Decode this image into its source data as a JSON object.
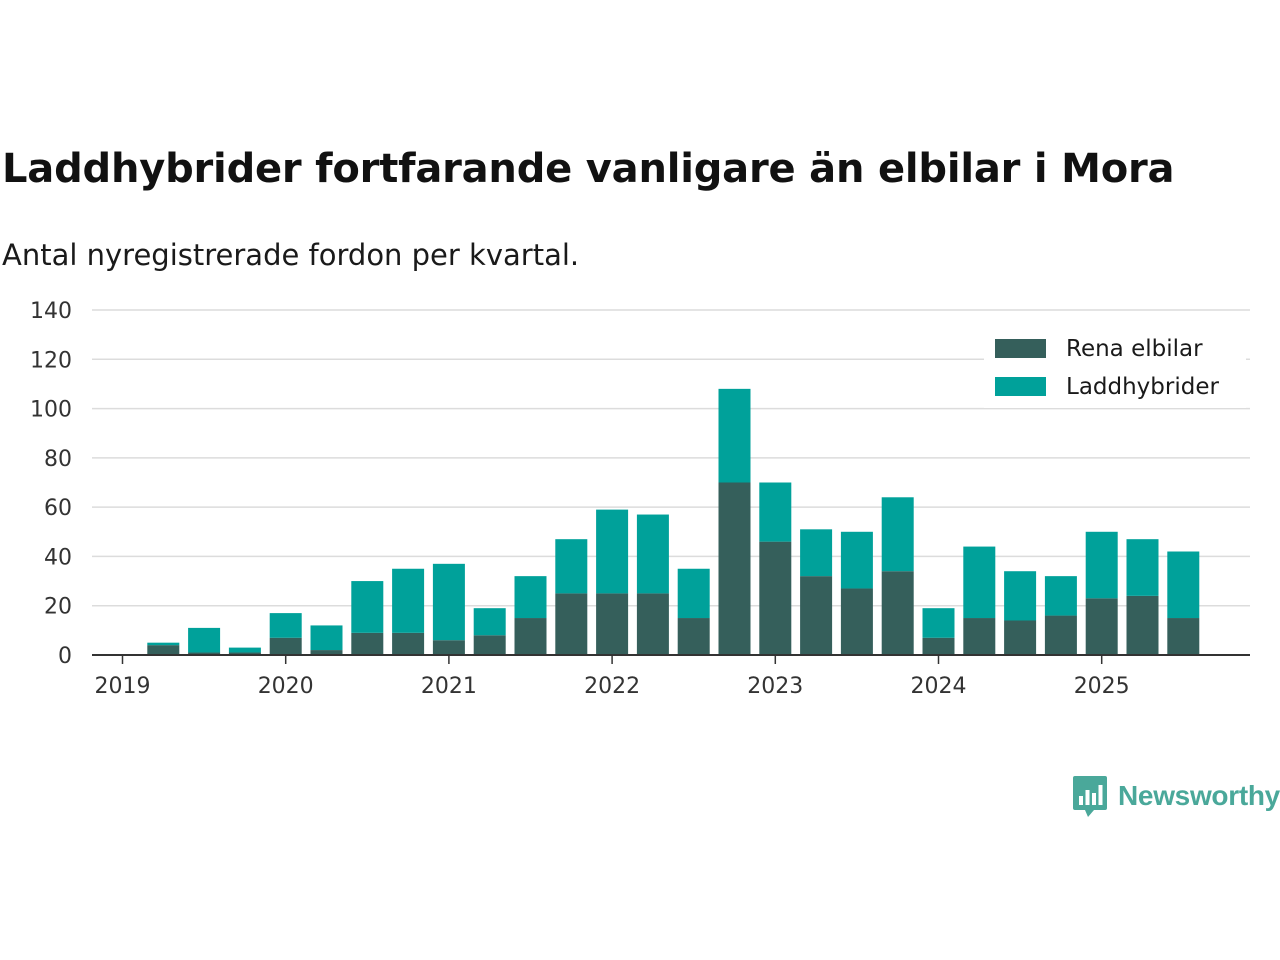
{
  "header": {
    "title": "Laddhybrider fortfarande vanligare än elbilar i Mora",
    "subtitle": "Antal nyregistrerade fordon per kvartal."
  },
  "brand": {
    "name": "Newsworthy",
    "icon": "bar-chart-speech-bubble-icon",
    "color": "#4aa89a"
  },
  "chart_data": {
    "type": "bar",
    "stacked": true,
    "x_unit": "quarter",
    "categories": [
      "2019 Q1",
      "2019 Q2",
      "2019 Q3",
      "2019 Q4",
      "2020 Q1",
      "2020 Q2",
      "2020 Q3",
      "2020 Q4",
      "2021 Q1",
      "2021 Q2",
      "2021 Q3",
      "2021 Q4",
      "2022 Q1",
      "2022 Q2",
      "2022 Q3",
      "2022 Q4",
      "2023 Q1",
      "2023 Q2",
      "2023 Q3",
      "2023 Q4",
      "2024 Q1",
      "2024 Q2",
      "2024 Q3",
      "2024 Q4",
      "2025 Q1",
      "2025 Q2",
      "2025 Q3"
    ],
    "series": [
      {
        "name": "Rena elbilar",
        "color": "#355f5b",
        "values": [
          0,
          4,
          1,
          1,
          7,
          2,
          9,
          9,
          6,
          8,
          15,
          25,
          25,
          25,
          15,
          70,
          46,
          32,
          27,
          34,
          7,
          15,
          14,
          16,
          23,
          24,
          15
        ]
      },
      {
        "name": "Laddhybrider",
        "color": "#00a19a",
        "values": [
          0,
          1,
          10,
          2,
          10,
          10,
          21,
          26,
          31,
          11,
          17,
          22,
          34,
          32,
          20,
          38,
          24,
          19,
          23,
          30,
          12,
          29,
          20,
          16,
          27,
          23,
          27
        ]
      }
    ],
    "x_tick_labels": [
      "2019",
      "2020",
      "2021",
      "2022",
      "2023",
      "2024",
      "2025"
    ],
    "y_ticks": [
      "0",
      "20",
      "40",
      "60",
      "80",
      "100",
      "120",
      "140"
    ],
    "ylim": [
      0,
      140
    ],
    "grid": true,
    "legend_position": "top-right",
    "xlabel": "",
    "ylabel": ""
  }
}
